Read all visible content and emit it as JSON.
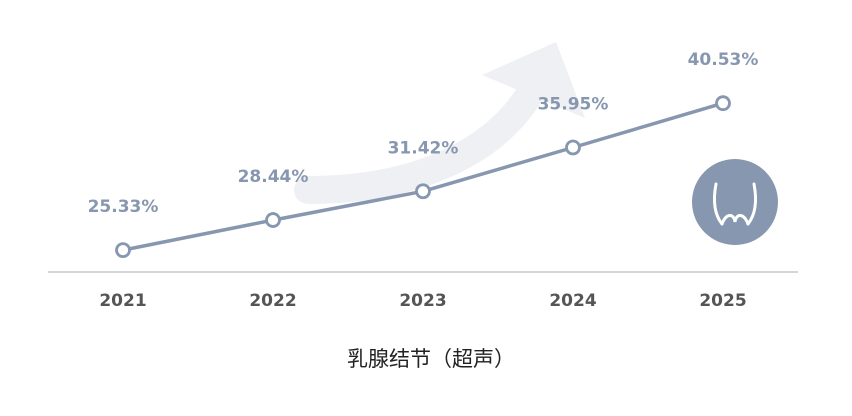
{
  "chart_data": {
    "type": "line",
    "categories": [
      "2021",
      "2022",
      "2023",
      "2024",
      "2025"
    ],
    "values": [
      25.33,
      28.44,
      31.42,
      35.95,
      40.53
    ],
    "data_labels": [
      "25.33%",
      "28.44%",
      "31.42%",
      "35.95%",
      "40.53%"
    ],
    "title": "",
    "xlabel": "乳腺结节（超声）",
    "ylabel": "",
    "ylim": [
      15,
      45
    ],
    "grid": false,
    "legend": "none",
    "colors": {
      "line": "#8797af",
      "marker_fill": "#ffffff",
      "axis": "#d3d6db",
      "value_label": "#8797af",
      "tick_label": "#555555",
      "trend_arrow": "#eef0f4",
      "badge": "#8797af"
    },
    "decorations": {
      "trend_arrow": "upward-trend-arrow-icon",
      "badge_icon": "breast-icon"
    }
  }
}
